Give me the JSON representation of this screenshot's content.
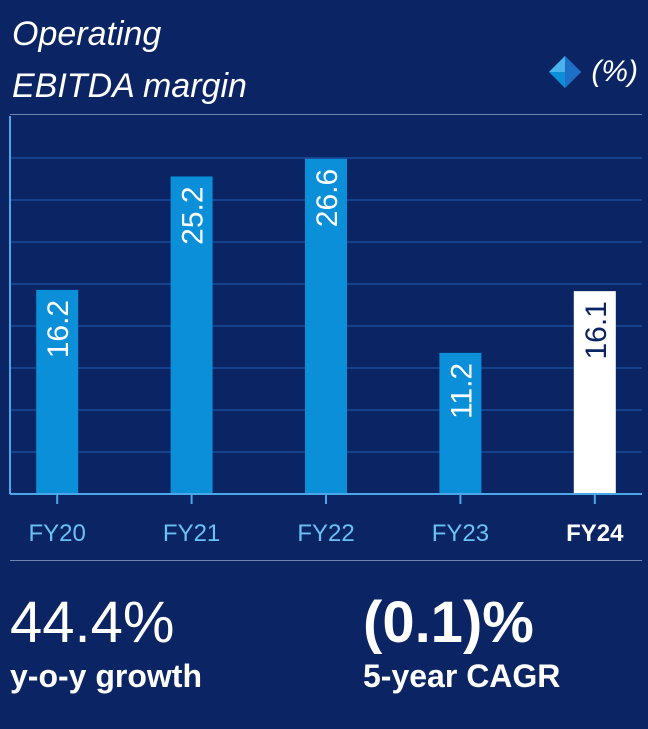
{
  "header": {
    "title_line1": "Operating",
    "title_line2": "EBITDA margin",
    "unit_label": "(%)",
    "unit_icon": "diamond-icon"
  },
  "colors": {
    "background": "#0b2463",
    "bar": "#0a8fd8",
    "bar_highlight": "#ffffff",
    "grid": "#1f5fb5",
    "axis": "#4aa8e8",
    "tick_label": "#69c1f5",
    "tick_label_highlight": "#ffffff"
  },
  "chart_data": {
    "type": "bar",
    "categories": [
      "FY20",
      "FY21",
      "FY22",
      "FY23",
      "FY24"
    ],
    "values": [
      16.2,
      25.2,
      26.6,
      11.2,
      16.1
    ],
    "value_labels": [
      "16.2",
      "25.2",
      "26.6",
      "11.2",
      "16.1"
    ],
    "highlight_category": "FY24",
    "ylim": [
      0,
      30
    ],
    "grid": true,
    "title": "Operating EBITDA margin",
    "ylabel": "(%)"
  },
  "stats": [
    {
      "value": "44.4%",
      "label": "y-o-y growth"
    },
    {
      "value": "(0.1)%",
      "label": "5-year CAGR"
    }
  ]
}
